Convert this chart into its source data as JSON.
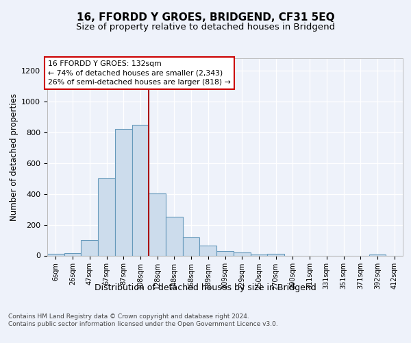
{
  "title": "16, FFORDD Y GROES, BRIDGEND, CF31 5EQ",
  "subtitle": "Size of property relative to detached houses in Bridgend",
  "xlabel": "Distribution of detached houses by size in Bridgend",
  "ylabel": "Number of detached properties",
  "categories": [
    "6sqm",
    "26sqm",
    "47sqm",
    "67sqm",
    "87sqm",
    "108sqm",
    "128sqm",
    "148sqm",
    "168sqm",
    "189sqm",
    "209sqm",
    "229sqm",
    "250sqm",
    "270sqm",
    "290sqm",
    "311sqm",
    "331sqm",
    "351sqm",
    "371sqm",
    "392sqm",
    "412sqm"
  ],
  "values": [
    10,
    15,
    100,
    500,
    820,
    850,
    405,
    250,
    120,
    65,
    30,
    20,
    8,
    10,
    0,
    0,
    0,
    0,
    0,
    5,
    0
  ],
  "bar_color": "#ccdcec",
  "bar_edge_color": "#6699bb",
  "vline_index": 5.5,
  "vline_color": "#aa0000",
  "annotation_text": "16 FFORDD Y GROES: 132sqm\n← 74% of detached houses are smaller (2,343)\n26% of semi-detached houses are larger (818) →",
  "annotation_box_color": "#ffffff",
  "annotation_box_edge": "#cc0000",
  "ylim": [
    0,
    1280
  ],
  "yticks": [
    0,
    200,
    400,
    600,
    800,
    1000,
    1200
  ],
  "background_color": "#eef2fa",
  "grid_color": "#ffffff",
  "footer": "Contains HM Land Registry data © Crown copyright and database right 2024.\nContains public sector information licensed under the Open Government Licence v3.0.",
  "title_fontsize": 11,
  "subtitle_fontsize": 9.5,
  "xlabel_fontsize": 9,
  "ylabel_fontsize": 8.5
}
